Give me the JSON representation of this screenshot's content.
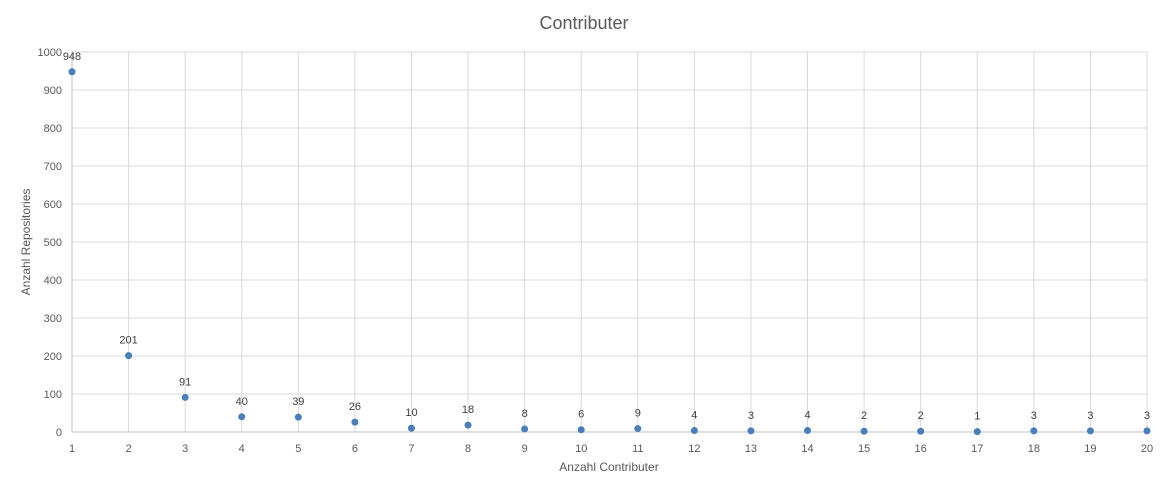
{
  "chart_data": {
    "type": "scatter",
    "title": "Contributer",
    "xlabel": "Anzahl Contributer",
    "ylabel": "Anzahl Repositories",
    "x": [
      1,
      2,
      3,
      4,
      5,
      6,
      7,
      8,
      9,
      10,
      11,
      12,
      13,
      14,
      15,
      16,
      17,
      18,
      19,
      20
    ],
    "y": [
      948,
      201,
      91,
      40,
      39,
      26,
      10,
      18,
      8,
      6,
      9,
      4,
      3,
      4,
      2,
      2,
      1,
      3,
      3,
      3
    ],
    "xlim": [
      1,
      20
    ],
    "ylim": [
      0,
      1000
    ],
    "x_ticks": [
      1,
      2,
      3,
      4,
      5,
      6,
      7,
      8,
      9,
      10,
      11,
      12,
      13,
      14,
      15,
      16,
      17,
      18,
      19,
      20
    ],
    "y_ticks": [
      0,
      100,
      200,
      300,
      400,
      500,
      600,
      700,
      800,
      900,
      1000
    ],
    "grid": true,
    "data_labels": true,
    "marker_color": "#4a7ebb"
  }
}
